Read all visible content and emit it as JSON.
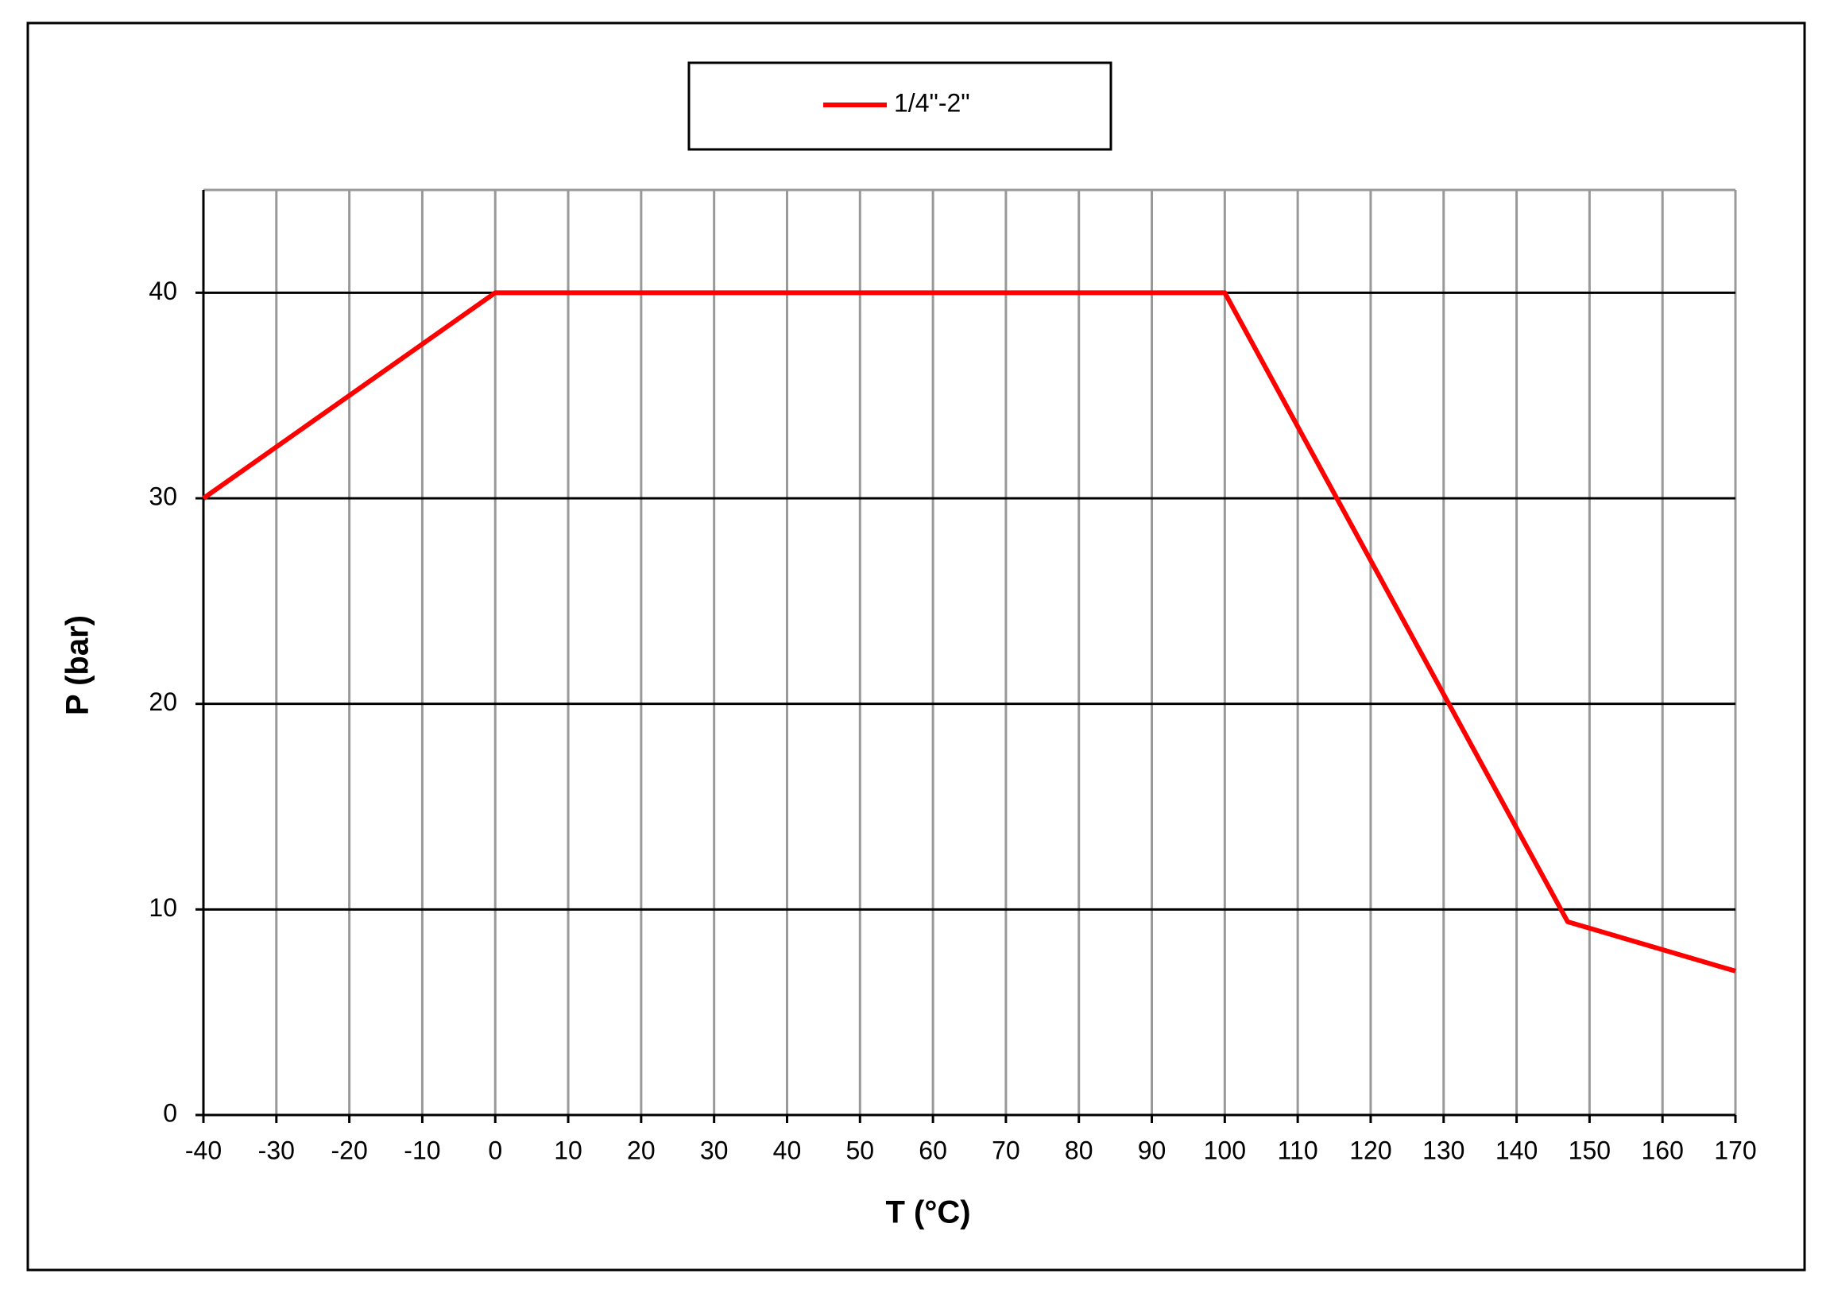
{
  "chart_data": {
    "type": "line",
    "x_label": "T (°C)",
    "y_label": "P (bar)",
    "x": [
      -40,
      0,
      100,
      147,
      170
    ],
    "series": [
      {
        "name": "1/4\"-2\"",
        "color": "#ff0000",
        "values": [
          30,
          40,
          40,
          9.4,
          7
        ]
      }
    ],
    "xlim": [
      -40,
      170
    ],
    "xticks": [
      -40,
      -30,
      -20,
      -10,
      0,
      10,
      20,
      30,
      40,
      50,
      60,
      70,
      80,
      90,
      100,
      110,
      120,
      130,
      140,
      150,
      160,
      170
    ],
    "ylim": [
      0,
      45
    ],
    "yticks": [
      0,
      10,
      20,
      30,
      40
    ],
    "grid": true,
    "legend": "top"
  }
}
